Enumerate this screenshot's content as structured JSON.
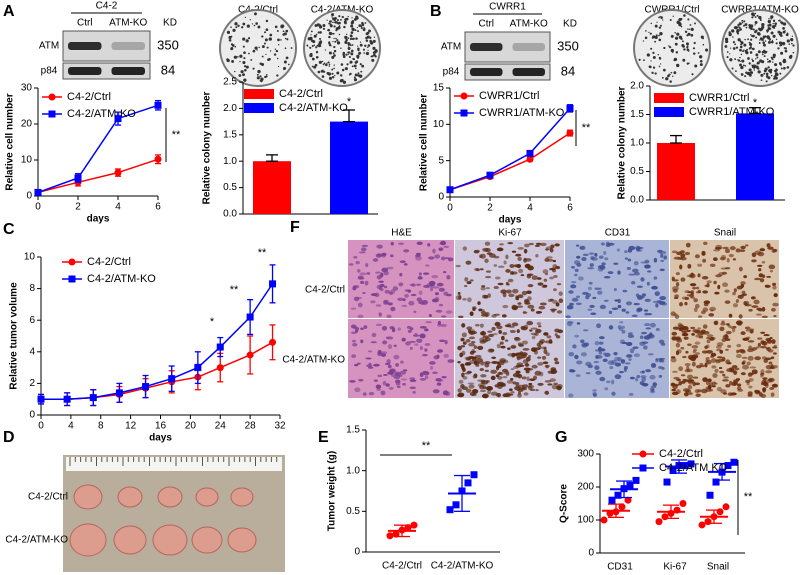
{
  "chart_data": [
    {
      "type": "line",
      "ylabel": "Relative cell number",
      "xlabel": "days",
      "x": [
        0,
        2,
        4,
        6
      ],
      "xlim": [
        0,
        6
      ],
      "xticks": [
        0,
        2,
        4,
        6
      ],
      "ylim": [
        0,
        30
      ],
      "yticks": [
        0,
        10,
        20,
        30
      ],
      "series": [
        {
          "name": "C4-2/Ctrl",
          "color": "#ff0000",
          "marker": "circle",
          "values": [
            1,
            3.8,
            6.5,
            10.2
          ],
          "errors": [
            0.3,
            1,
            1,
            1.2
          ]
        },
        {
          "name": "C4-2/ATM-KO",
          "color": "#0000ff",
          "marker": "square",
          "values": [
            1,
            5,
            21.5,
            25.2
          ],
          "errors": [
            0.3,
            1.2,
            1.8,
            1.3
          ]
        }
      ],
      "annotations": [
        "**"
      ]
    },
    {
      "type": "bar",
      "ylabel": "Relative colony number",
      "categories": [
        null
      ],
      "ylim": [
        0,
        2.5
      ],
      "yticks": [
        {
          "value": 0,
          "label": "0.0"
        },
        0.5,
        {
          "value": 1,
          "label": "1.0"
        },
        1.5,
        {
          "value": 2,
          "label": "2.0"
        },
        2.5
      ],
      "series": [
        {
          "name": "C4-2/Ctrl",
          "color": "#ff0000",
          "values": [
            1.0
          ],
          "errors": [
            0.12
          ]
        },
        {
          "name": "C4-2/ATM-KO",
          "color": "#0000ff",
          "values": [
            1.75
          ],
          "errors": [
            0.22
          ]
        }
      ],
      "annotations": [
        "*"
      ]
    },
    {
      "type": "line",
      "ylabel": "Relative cell number",
      "xlabel": "days",
      "x": [
        0,
        2,
        4,
        6
      ],
      "xlim": [
        0,
        6
      ],
      "xticks": [
        0,
        2,
        4,
        6
      ],
      "ylim": [
        0,
        15
      ],
      "yticks": [
        0,
        5,
        10,
        15
      ],
      "series": [
        {
          "name": "CWRR1/Ctrl",
          "color": "#ff0000",
          "marker": "circle",
          "values": [
            1,
            2.8,
            5.2,
            8.8
          ],
          "errors": [
            0.1,
            0.2,
            0.2,
            0.4
          ]
        },
        {
          "name": "CWRR1/ATM-KO",
          "color": "#0000ff",
          "marker": "square",
          "values": [
            1,
            3,
            6,
            12.2
          ],
          "errors": [
            0.1,
            0.2,
            0.2,
            0.5
          ]
        }
      ],
      "annotations": [
        "**"
      ]
    },
    {
      "type": "bar",
      "ylabel": "Relative colony number",
      "categories": [
        null
      ],
      "ylim": [
        0,
        2
      ],
      "yticks": [
        {
          "value": 0,
          "label": "0.0"
        },
        0.5,
        {
          "value": 1,
          "label": "1.0"
        },
        1.5,
        {
          "value": 2,
          "label": "2.0"
        }
      ],
      "series": [
        {
          "name": "CWRR1/Ctrl",
          "color": "#ff0000",
          "values": [
            1.0
          ],
          "errors": [
            0.13
          ]
        },
        {
          "name": "CWRR1/ATM-KO",
          "color": "#0000ff",
          "values": [
            1.52
          ],
          "errors": [
            0.1
          ]
        }
      ],
      "annotations": [
        "*"
      ]
    },
    {
      "type": "line",
      "ylabel": "Relative tumor volume",
      "xlabel": "days",
      "x": [
        0,
        3.5,
        7,
        10.5,
        14,
        17.5,
        21,
        24,
        28,
        31
      ],
      "xlim": [
        0,
        32
      ],
      "xticks": [
        0,
        4,
        8,
        12,
        16,
        20,
        24,
        28,
        32
      ],
      "ylim": [
        0,
        10
      ],
      "yticks": [
        0,
        2,
        4,
        6,
        8,
        10
      ],
      "series": [
        {
          "name": "C4-2/Ctrl",
          "color": "#ff0000",
          "marker": "circle",
          "values": [
            1,
            1,
            1.1,
            1.3,
            1.7,
            2.1,
            2.4,
            3,
            3.8,
            4.6
          ],
          "errors": [
            0.3,
            0.4,
            0.5,
            0.5,
            0.6,
            0.7,
            0.8,
            0.9,
            1.2,
            1.1
          ]
        },
        {
          "name": "C4-2/ATM-KO",
          "color": "#0000ff",
          "marker": "square",
          "values": [
            1,
            1,
            1.1,
            1.4,
            1.8,
            2.3,
            3,
            4.3,
            6.2,
            8.3
          ],
          "errors": [
            0.3,
            0.4,
            0.5,
            0.6,
            0.7,
            0.8,
            1,
            0.6,
            1.1,
            1.2
          ]
        }
      ],
      "annotations": [
        "*",
        "**",
        "**"
      ]
    },
    {
      "type": "dot",
      "ylabel": "Tumor weight (g)",
      "categories": [
        "C4-2/Ctrl",
        "C4-2/ATM-KO"
      ],
      "ylim": [
        0,
        1.5
      ],
      "yticks": [
        0,
        0.5,
        {
          "value": 1,
          "label": "1.0"
        },
        1.5
      ],
      "series": [
        {
          "color": "#ff0000",
          "marker": "circle",
          "values": [
            [
              0.2,
              0.22,
              0.27,
              0.3,
              0.33
            ],
            null
          ],
          "means": [
            0.26,
            null
          ],
          "sds": [
            0.07,
            null
          ]
        },
        {
          "color": "#0000ff",
          "marker": "square",
          "values": [
            null,
            [
              0.52,
              0.58,
              0.75,
              0.85,
              0.95
            ]
          ],
          "means": [
            null,
            0.72
          ],
          "sds": [
            null,
            0.22
          ]
        }
      ],
      "annotations": [
        "**"
      ]
    },
    {
      "type": "dot",
      "ylabel": "Q-Score",
      "categories": [
        "CD31",
        "Ki-67",
        "Snail"
      ],
      "ylim": [
        0,
        300
      ],
      "yticks": [
        0,
        100,
        200,
        300
      ],
      "series": [
        {
          "name": "C4-2/Ctrl",
          "color": "#ff0000",
          "marker": "circle",
          "values": [
            [
              100,
              120,
              125,
              140,
              160
            ],
            [
              95,
              110,
              120,
              130,
              150
            ],
            [
              85,
              95,
              110,
              125,
              140
            ]
          ],
          "means": [
            128,
            125,
            110
          ],
          "sds": [
            20,
            20,
            20
          ]
        },
        {
          "name": "C4-2/ATM KO",
          "color": "#0000ff",
          "marker": "square",
          "values": [
            [
              160,
              175,
              195,
              205,
              220
            ],
            [
              215,
              250,
              265,
              265,
              270
            ],
            [
              175,
              215,
              245,
              265,
              275
            ]
          ],
          "means": [
            193,
            262,
            246
          ],
          "sds": [
            25,
            20,
            25
          ]
        }
      ],
      "annotations": [
        "**"
      ]
    }
  ],
  "figure": {
    "letters": [
      "A",
      "B",
      "C",
      "D",
      "E",
      "F",
      "G"
    ],
    "blot_a": {
      "title": "C4-2",
      "lanes": [
        "Ctrl",
        "ATM-KO"
      ],
      "unit": "KD",
      "rows": [
        "ATM",
        "p84"
      ],
      "sizes": [
        350,
        84
      ]
    },
    "blot_b": {
      "title": "CWRR1",
      "lanes": [
        "Ctrl",
        "ATM-KO"
      ],
      "unit": "KD",
      "rows": [
        "ATM",
        "p84"
      ],
      "sizes": [
        350,
        84
      ]
    },
    "colony_a": [
      "C4-2/Ctrl",
      "C4-2/ATM-KO"
    ],
    "colony_b": [
      "CWRR1/Ctrl",
      "CWRR1/ATM-KO"
    ],
    "ihc": {
      "columns": [
        "H&E",
        "Ki-67",
        "CD31",
        "Snail"
      ],
      "rows": [
        "C4-2/Ctrl",
        "C4-2/ATM-KO"
      ]
    },
    "tumors": {
      "rows": [
        "C4-2/Ctrl",
        "C4-2/ATM-KO"
      ]
    }
  }
}
